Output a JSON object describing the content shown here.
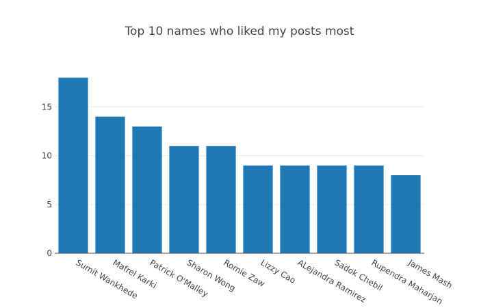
{
  "chart_data": {
    "type": "bar",
    "title": "Top 10 names who liked my posts most",
    "categories": [
      "Sumit Wankhede",
      "Mafrel Karki",
      "Patrick O'Malley",
      "Sharon Wong",
      "Romie Zaw",
      "Lizzy Cao",
      "ALejandra Ramirez",
      "Sadok Chebil",
      "Rupendra Maharjan",
      "James Mash"
    ],
    "values": [
      18,
      14,
      13,
      11,
      11,
      9,
      9,
      9,
      9,
      8
    ],
    "ylim": [
      0,
      18.95
    ],
    "yticks": [
      0,
      5,
      10,
      15
    ],
    "grid": true,
    "legend": "none",
    "bar_color": "#1f77b4"
  }
}
